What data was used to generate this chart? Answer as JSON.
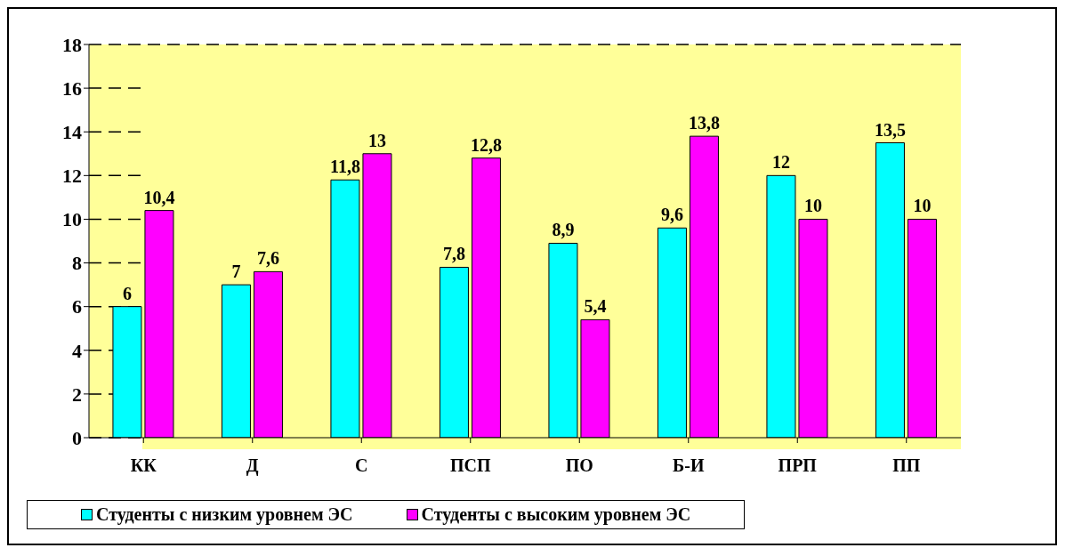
{
  "chart_data": {
    "type": "bar",
    "categories": [
      "КК",
      "Д",
      "С",
      "ПСП",
      "ПО",
      "Б-И",
      "ПРП",
      "ПП"
    ],
    "series": [
      {
        "name": "Студенты с низким уровнем ЭС",
        "color": "#00ffff",
        "values": [
          6,
          7,
          11.8,
          7.8,
          8.9,
          9.6,
          12,
          13.5
        ],
        "value_labels": [
          "6",
          "7",
          "11,8",
          "7,8",
          "8,9",
          "9,6",
          "12",
          "13,5"
        ]
      },
      {
        "name": "Студенты с высоким уровнем ЭС",
        "color": "#ff00ff",
        "values": [
          10.4,
          7.6,
          13,
          12.8,
          5.4,
          13.8,
          10,
          10
        ],
        "value_labels": [
          "10,4",
          "7,6",
          "13",
          "12,8",
          "5,4",
          "13,8",
          "10",
          "10"
        ]
      }
    ],
    "ylim": [
      0,
      18
    ],
    "yticks": [
      0,
      2,
      4,
      6,
      8,
      10,
      12,
      14,
      16,
      18
    ],
    "grid": "y",
    "legend": "bottom"
  }
}
